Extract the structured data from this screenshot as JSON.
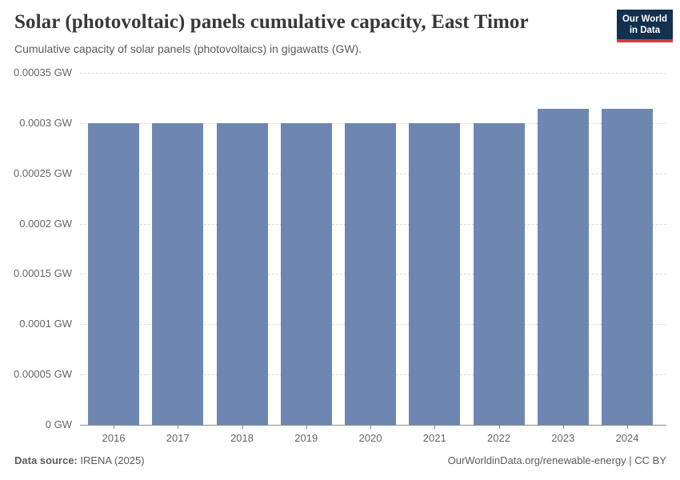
{
  "header": {
    "title": "Solar (photovoltaic) panels cumulative capacity, East Timor",
    "subtitle": "Cumulative capacity of solar panels (photovoltaics) in gigawatts (GW).",
    "logo": {
      "line1": "Our World",
      "line2": "in Data"
    }
  },
  "chart_data": {
    "type": "bar",
    "title": "Solar (photovoltaic) panels cumulative capacity, East Timor",
    "subtitle": "Cumulative capacity of solar panels (photovoltaics) in gigawatts (GW).",
    "categories": [
      "2016",
      "2017",
      "2018",
      "2019",
      "2020",
      "2021",
      "2022",
      "2023",
      "2024"
    ],
    "values": [
      0.0003,
      0.0003,
      0.0003,
      0.0003,
      0.0003,
      0.0003,
      0.0003,
      0.000314,
      0.000314
    ],
    "unit": "GW",
    "xlabel": "",
    "ylabel": "GW",
    "ylim": [
      0,
      0.00035
    ],
    "yticks": [
      {
        "value": 0,
        "label": "0 GW"
      },
      {
        "value": 5e-05,
        "label": "0.00005 GW"
      },
      {
        "value": 0.0001,
        "label": "0.0001 GW"
      },
      {
        "value": 0.00015,
        "label": "0.00015 GW"
      },
      {
        "value": 0.0002,
        "label": "0.0002 GW"
      },
      {
        "value": 0.00025,
        "label": "0.00025 GW"
      },
      {
        "value": 0.0003,
        "label": "0.0003 GW"
      },
      {
        "value": 0.00035,
        "label": "0.00035 GW"
      }
    ],
    "grid": "horizontal-dashed",
    "legend": "none"
  },
  "footer": {
    "source_label": "Data source:",
    "source_value": " IRENA (2025)",
    "link": "OurWorldinData.org/renewable-energy",
    "license": " | CC BY"
  },
  "colors": {
    "bar": "#6d87b1",
    "grid": "#dcdcdc",
    "axis": "#8a8a8a",
    "tick_text": "#666666",
    "title": "#383838",
    "subtitle": "#5b5b5b",
    "footer": "#5b5b5b",
    "logo_bg": "#12304f",
    "logo_stripe": "#d8383e"
  }
}
